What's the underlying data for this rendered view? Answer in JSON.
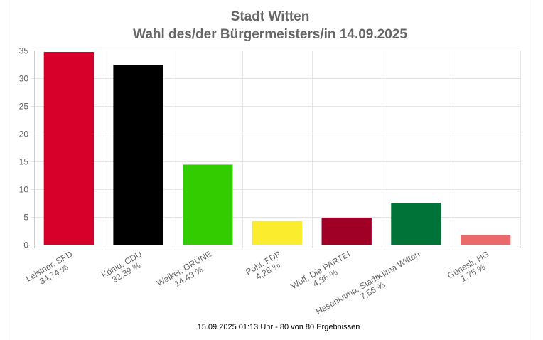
{
  "chart_data": {
    "type": "bar",
    "title": [
      "Stadt Witten",
      "Wahl des/der Bürgermeisters/in 14.09.2025"
    ],
    "categories": [
      "Leistner, SPD",
      "König, CDU",
      "Walker, GRÜNE",
      "Pohl, FDP",
      "Wulf, Die PARTEI",
      "Hasenkamp, StadtKlima Witten",
      "Günesli, HG"
    ],
    "values": [
      34.74,
      32.39,
      14.43,
      4.28,
      4.86,
      7.56,
      1.75
    ],
    "value_labels": [
      "34,74 %",
      "32,39 %",
      "14,43 %",
      "4,28 %",
      "4,86 %",
      "7,56 %",
      "1,75 %"
    ],
    "colors": [
      "#d6002a",
      "#000000",
      "#33cc00",
      "#fcec2e",
      "#a00026",
      "#007339",
      "#ea6a6c"
    ],
    "ylim": [
      0,
      35
    ],
    "yticks": [
      0,
      5,
      10,
      15,
      20,
      25,
      30,
      35
    ],
    "grid": true,
    "footer": "15.09.2025 01:13 Uhr - 80 von 80 Ergebnissen"
  }
}
